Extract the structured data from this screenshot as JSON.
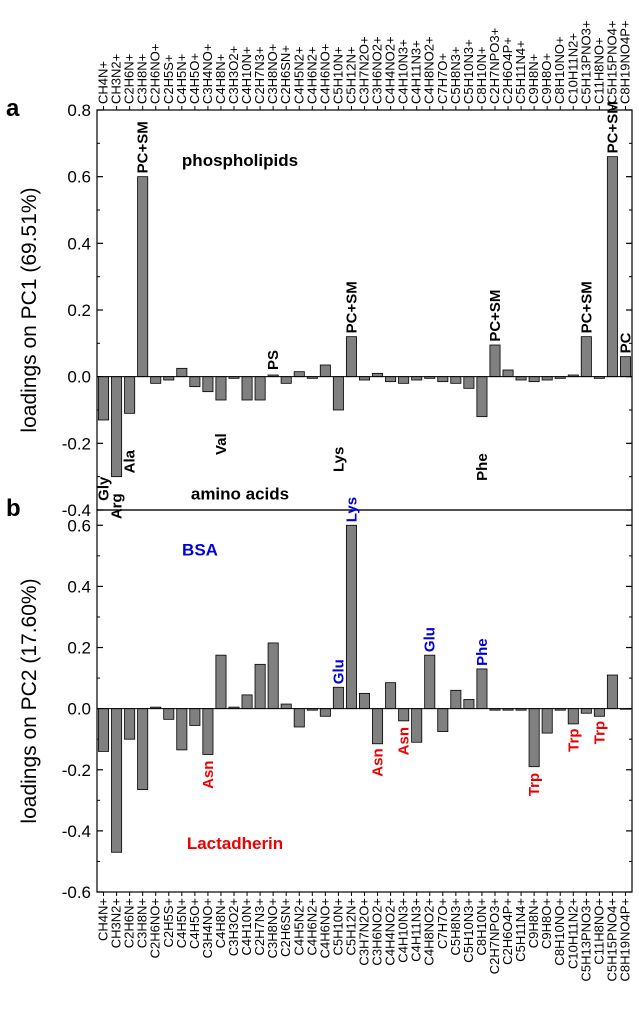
{
  "categories": [
    "CH4N+",
    "CH3N2+",
    "C2H6N+",
    "C3H8N+",
    "C2H6NO+",
    "C2H5S+",
    "C4H5N+",
    "C4H5O+",
    "C3H4NO+",
    "C4H8N+",
    "C3H3O2+",
    "C4H10N+",
    "C2H7N3+",
    "C3H8NO+",
    "C2H6SN+",
    "C4H5N2+",
    "C4H6N2+",
    "C4H6NO+",
    "C5H10N+",
    "C5H12N+",
    "C3H7N2O+",
    "C3H6NO2+",
    "C4H4NO2+",
    "C4H10N3+",
    "C4H11N3+",
    "C4H8NO2+",
    "C7H7O+",
    "C5H8N3+",
    "C5H10N3+",
    "C8H10N+",
    "C2H7NPO3+",
    "C2H6O4P+",
    "C5H11N4+",
    "C9H8N+",
    "C9H8O+",
    "C8H10NO+",
    "C10H11N2+",
    "C5H13PNO3+",
    "C11H8NO+",
    "C5H15PNO4+",
    "C8H19NO4P+"
  ],
  "chart_data": [
    {
      "type": "bar",
      "panel": "a",
      "ylabel": "loadings on PC1 (69.51%)",
      "ylim": [
        -0.4,
        0.8
      ],
      "yticks": [
        "-0.4",
        "-0.2",
        "0.0",
        "0.2",
        "0.4",
        "0.6",
        "0.8"
      ],
      "values": [
        -0.13,
        -0.3,
        -0.11,
        0.6,
        -0.02,
        -0.01,
        0.025,
        -0.03,
        -0.045,
        -0.07,
        -0.005,
        -0.07,
        -0.07,
        0.005,
        -0.02,
        0.015,
        -0.005,
        0.035,
        -0.1,
        0.12,
        -0.01,
        0.01,
        -0.015,
        -0.02,
        -0.01,
        -0.005,
        -0.015,
        -0.02,
        -0.035,
        -0.12,
        0.095,
        0.02,
        -0.01,
        -0.015,
        -0.01,
        -0.005,
        0.005,
        0.12,
        -0.005,
        0.66,
        0.06
      ],
      "annotations": [
        {
          "text": "phospholipids",
          "idx": null,
          "y": 0.65,
          "color": "#000000",
          "rotate": false
        },
        {
          "text": "amino acids",
          "idx": null,
          "y": -0.35,
          "color": "#000000",
          "rotate": false
        },
        {
          "text": "Gly",
          "idx": 0,
          "y": -0.3,
          "color": "#000000",
          "rotate": true
        },
        {
          "text": "Arg",
          "idx": 1,
          "y": -0.35,
          "color": "#000000",
          "rotate": true
        },
        {
          "text": "Ala",
          "idx": 2,
          "y": -0.22,
          "color": "#000000",
          "rotate": true
        },
        {
          "text": "PC+SM",
          "idx": 3,
          "y": 0.61,
          "color": "#000000",
          "rotate": true
        },
        {
          "text": "Val",
          "idx": 9,
          "y": -0.17,
          "color": "#000000",
          "rotate": true
        },
        {
          "text": "PS",
          "idx": 13,
          "y": 0.02,
          "color": "#000000",
          "rotate": true
        },
        {
          "text": "Lys",
          "idx": 18,
          "y": -0.21,
          "color": "#000000",
          "rotate": true
        },
        {
          "text": "PC+SM",
          "idx": 19,
          "y": 0.13,
          "color": "#000000",
          "rotate": true
        },
        {
          "text": "Phe",
          "idx": 29,
          "y": -0.23,
          "color": "#000000",
          "rotate": true
        },
        {
          "text": "PC+SM",
          "idx": 30,
          "y": 0.105,
          "color": "#000000",
          "rotate": true
        },
        {
          "text": "PC+SM",
          "idx": 37,
          "y": 0.13,
          "color": "#000000",
          "rotate": true
        },
        {
          "text": "PC+SM",
          "idx": 39,
          "y": 0.67,
          "color": "#000000",
          "rotate": true
        },
        {
          "text": "PC",
          "idx": 40,
          "y": 0.07,
          "color": "#000000",
          "rotate": true
        }
      ]
    },
    {
      "type": "bar",
      "panel": "b",
      "ylabel": "loadings on PC2 (17.60%)",
      "ylim": [
        -0.6,
        0.65
      ],
      "yticks": [
        "-0.6",
        "-0.4",
        "-0.2",
        "0.0",
        "0.2",
        "0.4",
        "0.6"
      ],
      "values": [
        -0.14,
        -0.47,
        -0.1,
        -0.265,
        0.005,
        -0.035,
        -0.135,
        -0.055,
        -0.15,
        0.175,
        0.005,
        0.045,
        0.145,
        0.215,
        0.015,
        -0.06,
        -0.005,
        -0.025,
        0.07,
        0.6,
        0.05,
        -0.115,
        0.085,
        -0.04,
        -0.11,
        0.175,
        -0.075,
        0.06,
        0.03,
        0.13,
        -0.005,
        -0.005,
        -0.005,
        -0.19,
        -0.08,
        -0.005,
        -0.05,
        -0.015,
        -0.025,
        0.11,
        0.0
      ],
      "annotations": [
        {
          "text": "BSA",
          "idx": null,
          "y": 0.52,
          "color": "#0000dd",
          "rotate": false
        },
        {
          "text": "Lactadherin",
          "idx": null,
          "y": -0.44,
          "color": "#ee0000",
          "rotate": false
        },
        {
          "text": "Asn",
          "idx": 8,
          "y": -0.17,
          "color": "#ee0000",
          "rotate": true
        },
        {
          "text": "Glu",
          "idx": 18,
          "y": 0.08,
          "color": "#0000dd",
          "rotate": true
        },
        {
          "text": "Lys",
          "idx": 19,
          "y": 0.61,
          "color": "#0000dd",
          "rotate": true
        },
        {
          "text": "Asn",
          "idx": 21,
          "y": -0.13,
          "color": "#ee0000",
          "rotate": true
        },
        {
          "text": "Asn",
          "idx": 23,
          "y": -0.06,
          "color": "#ee0000",
          "rotate": true
        },
        {
          "text": "Glu",
          "idx": 25,
          "y": 0.185,
          "color": "#0000dd",
          "rotate": true
        },
        {
          "text": "Phe",
          "idx": 29,
          "y": 0.14,
          "color": "#0000dd",
          "rotate": true
        },
        {
          "text": "Trp",
          "idx": 33,
          "y": -0.21,
          "color": "#ee0000",
          "rotate": true
        },
        {
          "text": "Trp",
          "idx": 36,
          "y": -0.065,
          "color": "#ee0000",
          "rotate": true
        },
        {
          "text": "Trp",
          "idx": 38,
          "y": -0.04,
          "color": "#ee0000",
          "rotate": true
        }
      ]
    }
  ]
}
